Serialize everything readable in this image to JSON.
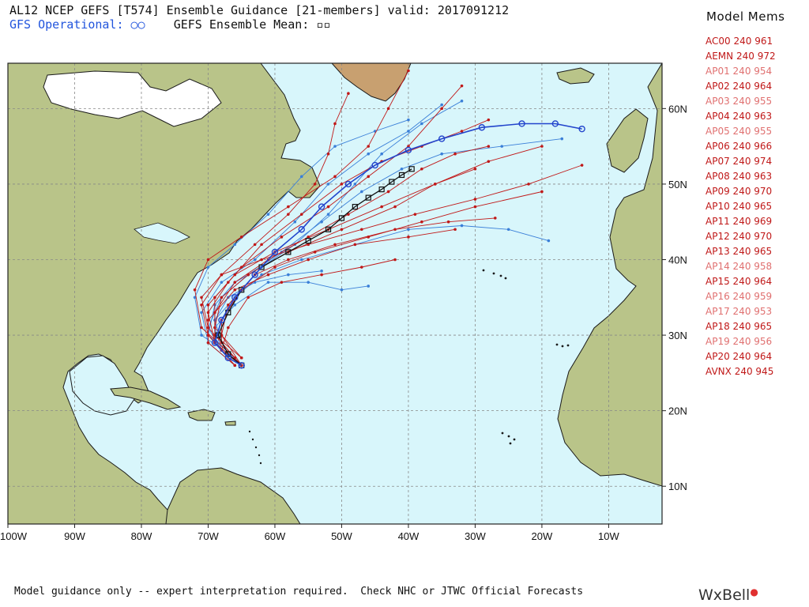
{
  "header": {
    "title": "AL12 NCEP GEFS [T574] Ensemble Guidance [21-members] valid: 2017091212",
    "gfs_operational": "GFS Operational: ○○",
    "gefs_mean": "GEFS Ensemble Mean: ▫▫"
  },
  "legend": {
    "title": "Model Mems",
    "members": [
      {
        "name": "AC00",
        "hour": "240",
        "pressure": "961",
        "color": "#c01818"
      },
      {
        "name": "AEMN",
        "hour": "240",
        "pressure": "972",
        "color": "#c01818"
      },
      {
        "name": "AP01",
        "hour": "240",
        "pressure": "954",
        "color": "#e07070"
      },
      {
        "name": "AP02",
        "hour": "240",
        "pressure": "964",
        "color": "#c01818"
      },
      {
        "name": "AP03",
        "hour": "240",
        "pressure": "955",
        "color": "#e07070"
      },
      {
        "name": "AP04",
        "hour": "240",
        "pressure": "963",
        "color": "#c01818"
      },
      {
        "name": "AP05",
        "hour": "240",
        "pressure": "955",
        "color": "#e07070"
      },
      {
        "name": "AP06",
        "hour": "240",
        "pressure": "966",
        "color": "#c01818"
      },
      {
        "name": "AP07",
        "hour": "240",
        "pressure": "974",
        "color": "#c01818"
      },
      {
        "name": "AP08",
        "hour": "240",
        "pressure": "963",
        "color": "#c01818"
      },
      {
        "name": "AP09",
        "hour": "240",
        "pressure": "970",
        "color": "#c01818"
      },
      {
        "name": "AP10",
        "hour": "240",
        "pressure": "965",
        "color": "#c01818"
      },
      {
        "name": "AP11",
        "hour": "240",
        "pressure": "969",
        "color": "#c01818"
      },
      {
        "name": "AP12",
        "hour": "240",
        "pressure": "970",
        "color": "#c01818"
      },
      {
        "name": "AP13",
        "hour": "240",
        "pressure": "965",
        "color": "#c01818"
      },
      {
        "name": "AP14",
        "hour": "240",
        "pressure": "958",
        "color": "#e07070"
      },
      {
        "name": "AP15",
        "hour": "240",
        "pressure": "964",
        "color": "#c01818"
      },
      {
        "name": "AP16",
        "hour": "240",
        "pressure": "959",
        "color": "#e07070"
      },
      {
        "name": "AP17",
        "hour": "240",
        "pressure": "953",
        "color": "#e07070"
      },
      {
        "name": "AP18",
        "hour": "240",
        "pressure": "965",
        "color": "#c01818"
      },
      {
        "name": "AP19",
        "hour": "240",
        "pressure": "956",
        "color": "#e07070"
      },
      {
        "name": "AP20",
        "hour": "240",
        "pressure": "964",
        "color": "#c01818"
      },
      {
        "name": "AVNX",
        "hour": "240",
        "pressure": "945",
        "color": "#c01818"
      }
    ]
  },
  "map": {
    "lon_range": [
      -100,
      -2
    ],
    "lat_range": [
      5,
      66
    ],
    "lon_ticks": [
      "100W",
      "90W",
      "80W",
      "70W",
      "60W",
      "50W",
      "40W",
      "30W",
      "20W",
      "10W"
    ],
    "lat_ticks": [
      "10N",
      "20N",
      "30N",
      "40N",
      "50N",
      "60N"
    ],
    "colors": {
      "ocean": "#d8f6fb",
      "land": "#b9c489",
      "grid": "#888888",
      "ensemble": "#c01818",
      "ensemble_light": "#3a7fd8",
      "operational": "#2244cc",
      "mean": "#111111"
    }
  },
  "tracks": {
    "gfs_operational": [
      [
        -65,
        26
      ],
      [
        -67,
        27
      ],
      [
        -69,
        29
      ],
      [
        -68,
        32
      ],
      [
        -66,
        35
      ],
      [
        -63,
        38
      ],
      [
        -60,
        41
      ],
      [
        -56,
        44
      ],
      [
        -53,
        47
      ],
      [
        -49,
        50
      ],
      [
        -45,
        52.5
      ],
      [
        -40,
        54.5
      ],
      [
        -35,
        56
      ],
      [
        -29,
        57.5
      ],
      [
        -23,
        58
      ],
      [
        -18,
        58
      ],
      [
        -14,
        57.3
      ]
    ],
    "gefs_mean": [
      [
        -65,
        26
      ],
      [
        -67,
        27.5
      ],
      [
        -68.5,
        30
      ],
      [
        -67,
        33
      ],
      [
        -65,
        36
      ],
      [
        -62,
        39
      ],
      [
        -58,
        41
      ],
      [
        -55,
        42.5
      ],
      [
        -52,
        44
      ],
      [
        -50,
        45.5
      ],
      [
        -48,
        47
      ],
      [
        -46,
        48.2
      ],
      [
        -44,
        49.3
      ],
      [
        -42.5,
        50.3
      ],
      [
        -41,
        51.2
      ],
      [
        -39.5,
        52
      ]
    ],
    "members_red": [
      [
        [
          -65,
          26
        ],
        [
          -69,
          29
        ],
        [
          -70,
          33
        ],
        [
          -67,
          37
        ],
        [
          -62,
          42
        ],
        [
          -56,
          46
        ],
        [
          -50,
          50
        ],
        [
          -44,
          53
        ],
        [
          -38,
          55
        ],
        [
          -32,
          57
        ],
        [
          -28,
          58.5
        ]
      ],
      [
        [
          -65,
          26
        ],
        [
          -68,
          29
        ],
        [
          -68,
          32
        ],
        [
          -65,
          36
        ],
        [
          -60,
          39
        ],
        [
          -54,
          41
        ],
        [
          -46,
          43
        ],
        [
          -38,
          45
        ],
        [
          -30,
          47
        ],
        [
          -20,
          49
        ]
      ],
      [
        [
          -66,
          26
        ],
        [
          -70,
          30
        ],
        [
          -70,
          34
        ],
        [
          -66,
          38
        ],
        [
          -60,
          41
        ],
        [
          -52,
          44
        ],
        [
          -44,
          47
        ],
        [
          -36,
          50
        ],
        [
          -28,
          53
        ],
        [
          -20,
          55
        ]
      ],
      [
        [
          -65,
          27
        ],
        [
          -69,
          30
        ],
        [
          -69,
          35
        ],
        [
          -65,
          39
        ],
        [
          -59,
          43
        ],
        [
          -52,
          47
        ],
        [
          -46,
          51
        ],
        [
          -40,
          55
        ],
        [
          -35,
          60
        ],
        [
          -32,
          63
        ]
      ],
      [
        [
          -65,
          26
        ],
        [
          -68,
          30
        ],
        [
          -67,
          34
        ],
        [
          -63,
          38
        ],
        [
          -58,
          40
        ],
        [
          -51,
          42
        ],
        [
          -42,
          44
        ],
        [
          -34,
          45
        ],
        [
          -27,
          45.5
        ]
      ],
      [
        [
          -66,
          27
        ],
        [
          -70,
          31
        ],
        [
          -71,
          35
        ],
        [
          -68,
          38
        ],
        [
          -62,
          40
        ],
        [
          -55,
          42
        ],
        [
          -47,
          44
        ],
        [
          -39,
          46
        ],
        [
          -30,
          48
        ],
        [
          -22,
          50
        ],
        [
          -14,
          52.5
        ]
      ],
      [
        [
          -65,
          26
        ],
        [
          -69,
          29
        ],
        [
          -69,
          33
        ],
        [
          -66,
          37
        ],
        [
          -61,
          40
        ],
        [
          -55,
          43
        ],
        [
          -49,
          46
        ],
        [
          -43,
          49
        ],
        [
          -38,
          52
        ],
        [
          -33,
          54
        ],
        [
          -28,
          55
        ]
      ],
      [
        [
          -66,
          27
        ],
        [
          -71,
          31
        ],
        [
          -72,
          36
        ],
        [
          -70,
          40
        ],
        [
          -65,
          43
        ],
        [
          -58,
          47
        ],
        [
          -51,
          51
        ],
        [
          -46,
          55
        ],
        [
          -43,
          60
        ],
        [
          -40,
          65
        ]
      ],
      [
        [
          -65,
          26
        ],
        [
          -68,
          28
        ],
        [
          -67,
          31
        ],
        [
          -64,
          35
        ],
        [
          -59,
          37
        ],
        [
          -53,
          38
        ],
        [
          -47,
          39
        ],
        [
          -42,
          40
        ]
      ],
      [
        [
          -66,
          26
        ],
        [
          -70,
          29
        ],
        [
          -70,
          32
        ],
        [
          -66,
          36
        ],
        [
          -61,
          38
        ],
        [
          -55,
          40
        ],
        [
          -48,
          42
        ],
        [
          -40,
          43
        ],
        [
          -33,
          44
        ]
      ],
      [
        [
          -65,
          27
        ],
        [
          -69,
          31
        ],
        [
          -68,
          35
        ],
        [
          -64,
          38
        ],
        [
          -58,
          41
        ],
        [
          -50,
          44
        ],
        [
          -42,
          47
        ],
        [
          -36,
          50
        ],
        [
          -30,
          52
        ]
      ],
      [
        [
          -66,
          26
        ],
        [
          -70,
          30
        ],
        [
          -71,
          34
        ],
        [
          -68,
          38
        ],
        [
          -63,
          42
        ],
        [
          -58,
          46
        ],
        [
          -54,
          50
        ],
        [
          -52,
          54
        ],
        [
          -51,
          58
        ],
        [
          -49,
          62
        ]
      ]
    ],
    "members_blue": [
      [
        [
          -65,
          26
        ],
        [
          -68,
          28
        ],
        [
          -69,
          31
        ],
        [
          -66,
          34
        ],
        [
          -61,
          37
        ],
        [
          -55,
          37
        ],
        [
          -50,
          36
        ],
        [
          -46,
          36.5
        ]
      ],
      [
        [
          -66,
          26
        ],
        [
          -70,
          29
        ],
        [
          -71,
          33
        ],
        [
          -68,
          37
        ],
        [
          -63,
          40
        ],
        [
          -57,
          45
        ],
        [
          -52,
          50
        ],
        [
          -46,
          54
        ],
        [
          -40,
          57
        ],
        [
          -35,
          60.5
        ]
      ],
      [
        [
          -65,
          26
        ],
        [
          -69,
          29
        ],
        [
          -69,
          32
        ],
        [
          -66,
          35
        ],
        [
          -62,
          38
        ],
        [
          -56,
          40
        ],
        [
          -48,
          42
        ],
        [
          -40,
          44
        ],
        [
          -32,
          44.5
        ],
        [
          -25,
          44
        ],
        [
          -19,
          42.5
        ]
      ],
      [
        [
          -66,
          27
        ],
        [
          -71,
          30
        ],
        [
          -72,
          35
        ],
        [
          -70,
          39
        ],
        [
          -66,
          42
        ],
        [
          -61,
          46
        ],
        [
          -56,
          51
        ],
        [
          -51,
          55
        ],
        [
          -45,
          57
        ],
        [
          -40,
          58.5
        ]
      ],
      [
        [
          -65,
          26
        ],
        [
          -68,
          28
        ],
        [
          -70,
          31
        ],
        [
          -68,
          35
        ],
        [
          -64,
          38
        ],
        [
          -59,
          41
        ],
        [
          -53,
          45
        ],
        [
          -47,
          49
        ],
        [
          -41,
          52
        ],
        [
          -35,
          54
        ],
        [
          -26,
          55
        ],
        [
          -17,
          56
        ]
      ],
      [
        [
          -66,
          27
        ],
        [
          -70,
          30
        ],
        [
          -69,
          34
        ],
        [
          -66,
          37
        ],
        [
          -62,
          39
        ],
        [
          -57,
          42
        ],
        [
          -52,
          46
        ],
        [
          -48,
          50
        ],
        [
          -44,
          54
        ],
        [
          -38,
          58
        ],
        [
          -32,
          61
        ]
      ],
      [
        [
          -65,
          26
        ],
        [
          -68,
          29
        ],
        [
          -69,
          32
        ],
        [
          -67,
          35
        ],
        [
          -63,
          37
        ],
        [
          -58,
          38
        ],
        [
          -53,
          38.5
        ]
      ]
    ]
  },
  "footer": {
    "disclaimer": "Model guidance only -- expert interpretation required.  Check NHC or JTWC Official Forecasts",
    "brand": "WxBell"
  }
}
